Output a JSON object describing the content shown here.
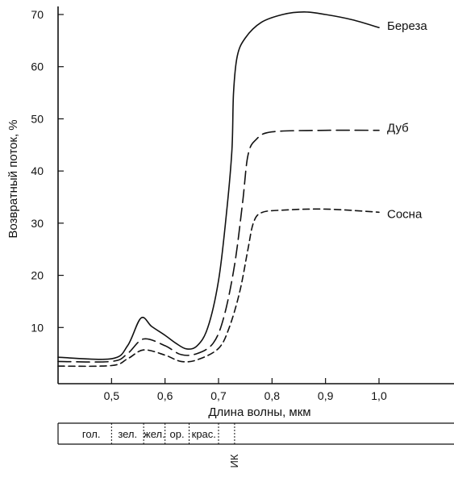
{
  "chart_data": {
    "type": "line",
    "title": "",
    "xlabel": "Длина волны, мкм",
    "ylabel": "Возвратный поток, %",
    "xlim": [
      0.4,
      1.15
    ],
    "ylim": [
      0,
      72
    ],
    "x_ticks": [
      0.5,
      0.6,
      0.7,
      0.8,
      0.9,
      1.0
    ],
    "x_tick_labels": [
      "0,5",
      "0,6",
      "0,7",
      "0,8",
      "0,9",
      "1,0"
    ],
    "y_ticks": [
      10,
      20,
      30,
      40,
      50,
      60,
      70
    ],
    "y_tick_labels": [
      "10",
      "20",
      "30",
      "40",
      "50",
      "60",
      "70"
    ],
    "grid": false,
    "legend": "labels placed at right end of each curve",
    "series": [
      {
        "name": "Береза",
        "line_style": "solid",
        "x": [
          0.4,
          0.5,
          0.53,
          0.555,
          0.575,
          0.6,
          0.62,
          0.64,
          0.66,
          0.68,
          0.7,
          0.715,
          0.725,
          0.728,
          0.735,
          0.75,
          0.78,
          0.82,
          0.86,
          0.9,
          0.95,
          1.0
        ],
        "y": [
          4.3,
          4.0,
          6.5,
          11.8,
          10.2,
          8.5,
          7.0,
          5.9,
          6.5,
          10.0,
          19.0,
          32.0,
          44.0,
          55.0,
          62.0,
          65.5,
          68.5,
          70.0,
          70.5,
          70.0,
          69.0,
          67.5
        ]
      },
      {
        "name": "Дуб",
        "line_style": "dashed",
        "x": [
          0.4,
          0.5,
          0.53,
          0.56,
          0.6,
          0.63,
          0.66,
          0.69,
          0.71,
          0.73,
          0.745,
          0.755,
          0.77,
          0.8,
          0.9,
          1.0
        ],
        "y": [
          3.5,
          3.5,
          5.0,
          7.8,
          6.5,
          4.8,
          5.0,
          7.0,
          12.0,
          22.0,
          34.0,
          43.0,
          46.0,
          47.5,
          47.8,
          47.8
        ]
      },
      {
        "name": "Сосна",
        "line_style": "dashed",
        "x": [
          0.4,
          0.5,
          0.53,
          0.56,
          0.6,
          0.63,
          0.66,
          0.7,
          0.72,
          0.74,
          0.755,
          0.765,
          0.78,
          0.82,
          0.9,
          1.0
        ],
        "y": [
          2.6,
          2.7,
          4.0,
          5.7,
          4.7,
          3.5,
          3.8,
          6.0,
          10.0,
          17.0,
          25.0,
          30.0,
          32.0,
          32.5,
          32.7,
          32.1
        ]
      }
    ],
    "band_labels": [
      "гол.",
      "зел.",
      "жел.",
      "ор.",
      "крас."
    ],
    "ir_label": "ИК"
  }
}
